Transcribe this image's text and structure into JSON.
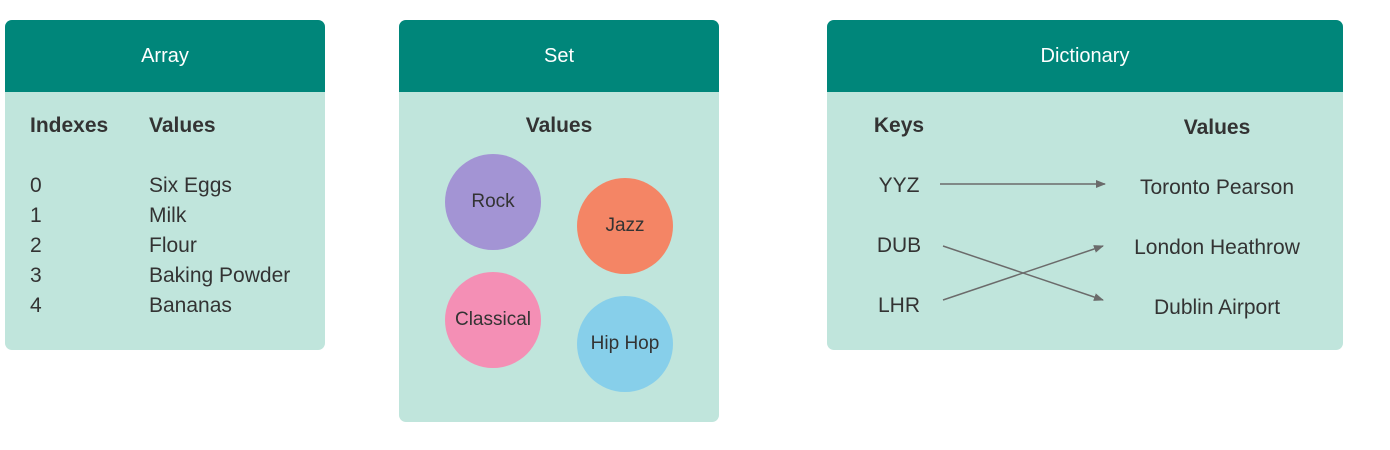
{
  "array": {
    "title": "Array",
    "indexes_header": "Indexes",
    "values_header": "Values",
    "rows": [
      {
        "index": "0",
        "value": "Six Eggs"
      },
      {
        "index": "1",
        "value": "Milk"
      },
      {
        "index": "2",
        "value": "Flour"
      },
      {
        "index": "3",
        "value": "Baking Powder"
      },
      {
        "index": "4",
        "value": "Bananas"
      }
    ]
  },
  "set": {
    "title": "Set",
    "values_header": "Values",
    "items": [
      {
        "label": "Rock",
        "color": "#a394d4"
      },
      {
        "label": "Jazz",
        "color": "#f48565"
      },
      {
        "label": "Classical",
        "color": "#f48fb5"
      },
      {
        "label": "Hip Hop",
        "color": "#87cfea"
      }
    ]
  },
  "dictionary": {
    "title": "Dictionary",
    "keys_header": "Keys",
    "values_header": "Values",
    "keys": [
      "YYZ",
      "DUB",
      "LHR"
    ],
    "values": [
      "Toronto Pearson",
      "London Heathrow",
      "Dublin Airport"
    ],
    "mapping": [
      {
        "key": "YYZ",
        "value": "Toronto Pearson"
      },
      {
        "key": "DUB",
        "value": "Dublin Airport"
      },
      {
        "key": "LHR",
        "value": "London Heathrow"
      }
    ]
  },
  "colors": {
    "header": "#00867a",
    "card_body": "#c0e5dc",
    "arrow": "#6b6b6b"
  }
}
